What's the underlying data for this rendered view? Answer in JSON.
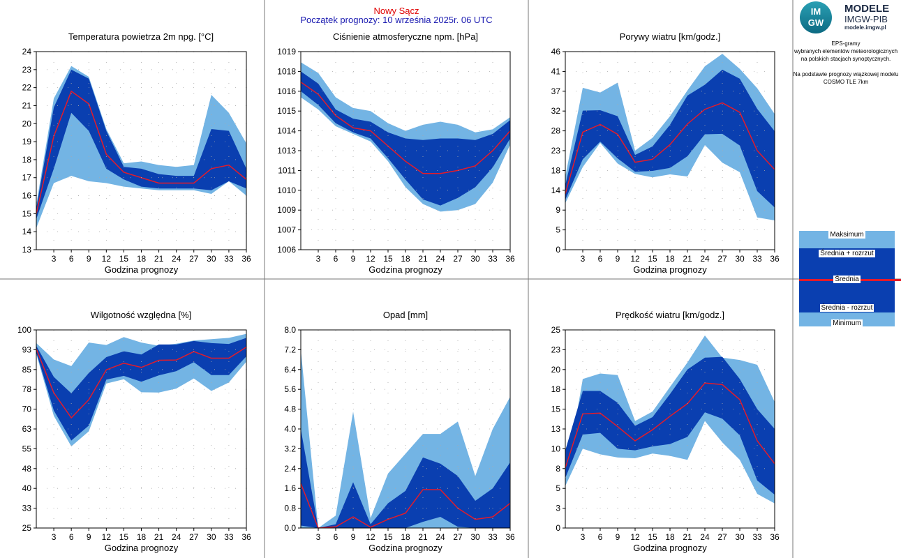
{
  "header": {
    "station": "Nowy Sącz",
    "forecast_start": "Początek prognozy: 10 września 2025r. 06 UTC"
  },
  "logo": {
    "mark_top": "IM",
    "mark_bottom": "GW",
    "title": "MODELE",
    "subtitle": "IMGW-PIB",
    "url": "modele.imgw.pl"
  },
  "info_text": [
    "EPS-gramy",
    "wybranych elementów meteorologicznych",
    "na polskich stacjach  synoptycznych.",
    "",
    "Na podstawie prognozy wiązkowej modelu",
    "COSMO TLE 7km"
  ],
  "legend": {
    "max": "Maksimum",
    "mean_plus": "Średnia + rozrzut",
    "mean": "Średnia",
    "mean_minus": "Średnia - rozrzut",
    "min": "Minimum"
  },
  "colors": {
    "range_band": "#73b4e4",
    "spread_band": "#0a3fb0",
    "mean_line": "#e41b2a",
    "station_title": "#e00000",
    "forecast_title": "#1a1ab0"
  },
  "chart_data": [
    {
      "type": "area",
      "title": "Temperatura powietrza 2m npg. [°C]",
      "xlabel": "Godzina prognozy",
      "x": [
        0,
        3,
        6,
        9,
        12,
        15,
        18,
        21,
        24,
        27,
        30,
        33,
        36
      ],
      "x_ticks": [
        "3",
        "6",
        "9",
        "12",
        "15",
        "18",
        "21",
        "24",
        "27",
        "30",
        "33",
        "36"
      ],
      "y_ticks": [
        "13",
        "14",
        "15",
        "16",
        "17",
        "18",
        "19",
        "20",
        "21",
        "22",
        "23",
        "24"
      ],
      "ylim": [
        13,
        24
      ],
      "series": [
        {
          "name": "Maksimum",
          "values": [
            15.5,
            21.4,
            23.2,
            22.6,
            19.7,
            17.8,
            17.9,
            17.7,
            17.6,
            17.7,
            21.6,
            20.6,
            18.9
          ]
        },
        {
          "name": "Średnia + rozrzut",
          "values": [
            15.3,
            20.9,
            23.0,
            22.5,
            19.6,
            17.6,
            17.5,
            17.2,
            17.1,
            17.1,
            19.7,
            19.6,
            17.5
          ]
        },
        {
          "name": "Średnia",
          "values": [
            15.0,
            19.3,
            21.8,
            21.1,
            18.3,
            17.3,
            17.0,
            16.7,
            16.7,
            16.7,
            17.5,
            17.7,
            16.9
          ]
        },
        {
          "name": "Średnia - rozrzut",
          "values": [
            14.7,
            17.5,
            20.6,
            19.6,
            17.5,
            16.9,
            16.5,
            16.4,
            16.4,
            16.4,
            16.3,
            16.8,
            16.4
          ]
        },
        {
          "name": "Minimum",
          "values": [
            14.2,
            16.7,
            17.1,
            16.8,
            16.7,
            16.5,
            16.4,
            16.3,
            16.3,
            16.3,
            16.1,
            16.8,
            16.0
          ]
        }
      ]
    },
    {
      "type": "area",
      "title": "Ciśnienie atmosferyczne npm. [hPa]",
      "xlabel": "Godzina prognozy",
      "x": [
        0,
        3,
        6,
        9,
        12,
        15,
        18,
        21,
        24,
        27,
        30,
        33,
        36
      ],
      "x_ticks": [
        "3",
        "6",
        "9",
        "12",
        "15",
        "18",
        "21",
        "24",
        "27",
        "30",
        "33",
        "36"
      ],
      "y_ticks": [
        "1006",
        "1007",
        "1009",
        "1010",
        "1011",
        "1013",
        "1014",
        "1015",
        "1016",
        "1018",
        "1019"
      ],
      "ylim": [
        1006,
        1019
      ],
      "series": [
        {
          "name": "Maksimum",
          "values": [
            1018.3,
            1017.6,
            1016.0,
            1015.3,
            1015.1,
            1014.3,
            1013.8,
            1014.2,
            1014.4,
            1014.2,
            1013.7,
            1013.9,
            1014.7
          ]
        },
        {
          "name": "Średnia + rozrzut",
          "values": [
            1017.7,
            1016.9,
            1015.2,
            1014.6,
            1014.4,
            1013.7,
            1013.3,
            1013.2,
            1013.3,
            1013.3,
            1013.2,
            1013.6,
            1014.5
          ]
        },
        {
          "name": "Średnia",
          "values": [
            1017.0,
            1016.2,
            1014.8,
            1014.0,
            1013.8,
            1012.8,
            1011.8,
            1011.0,
            1011.0,
            1011.2,
            1011.5,
            1012.5,
            1013.8
          ]
        },
        {
          "name": "Średnia - rozrzut",
          "values": [
            1016.4,
            1015.5,
            1014.3,
            1013.7,
            1013.3,
            1012.0,
            1010.6,
            1009.3,
            1008.9,
            1009.4,
            1010.1,
            1011.4,
            1013.3
          ]
        },
        {
          "name": "Minimum",
          "values": [
            1016.0,
            1015.2,
            1014.1,
            1013.6,
            1013.1,
            1011.8,
            1010.1,
            1009.0,
            1008.5,
            1008.6,
            1009.0,
            1010.4,
            1012.9
          ]
        }
      ]
    },
    {
      "type": "area",
      "title": "Porywy wiatru [km/godz.]",
      "xlabel": "Godzina prognozy",
      "x": [
        0,
        3,
        6,
        9,
        12,
        15,
        18,
        21,
        24,
        27,
        30,
        33,
        36
      ],
      "x_ticks": [
        "3",
        "6",
        "9",
        "12",
        "15",
        "18",
        "21",
        "24",
        "27",
        "30",
        "33",
        "36"
      ],
      "y_ticks": [
        "0",
        "5",
        "9",
        "14",
        "18",
        "23",
        "28",
        "32",
        "37",
        "41",
        "46"
      ],
      "ylim": [
        0,
        46
      ],
      "series": [
        {
          "name": "Maksimum",
          "values": [
            17,
            37.6,
            36.5,
            38.8,
            23.0,
            26.0,
            31.0,
            37.0,
            42.6,
            45.5,
            42.0,
            37.5,
            31.5
          ]
        },
        {
          "name": "Średnia + rozrzut",
          "values": [
            15,
            32.3,
            32.4,
            31.0,
            22.0,
            24.0,
            29.0,
            35.8,
            38.3,
            41.8,
            39.7,
            32.7,
            27.5
          ]
        },
        {
          "name": "Średnia",
          "values": [
            13,
            27.3,
            29.1,
            26.8,
            20.3,
            21.0,
            24.4,
            29.2,
            32.6,
            34.1,
            31.9,
            23.0,
            18.6
          ]
        },
        {
          "name": "Średnia - rozrzut",
          "values": [
            11.6,
            21.0,
            25.1,
            21.2,
            18.1,
            18.3,
            19.0,
            21.7,
            26.8,
            26.9,
            24.2,
            13.6,
            9.8
          ]
        },
        {
          "name": "Minimum",
          "values": [
            10.8,
            19.2,
            24.8,
            20.0,
            17.6,
            16.8,
            17.5,
            17.0,
            24.3,
            20.2,
            18.0,
            7.5,
            6.8
          ]
        }
      ]
    },
    {
      "type": "area",
      "title": "Wilgotność względna [%]",
      "xlabel": "Godzina prognozy",
      "x": [
        0,
        3,
        6,
        9,
        12,
        15,
        18,
        21,
        24,
        27,
        30,
        33,
        36
      ],
      "x_ticks": [
        "3",
        "6",
        "9",
        "12",
        "15",
        "18",
        "21",
        "24",
        "27",
        "30",
        "33",
        "36"
      ],
      "y_ticks": [
        "25",
        "33",
        "40",
        "48",
        "55",
        "63",
        "70",
        "78",
        "85",
        "93",
        "100"
      ],
      "ylim": [
        25,
        100
      ],
      "series": [
        {
          "name": "Maksimum",
          "values": [
            95,
            88.8,
            86.3,
            95.2,
            94.3,
            97.3,
            95.2,
            94.0,
            94.8,
            96.0,
            96.5,
            97.0,
            98.5
          ]
        },
        {
          "name": "Średnia + rozrzut",
          "values": [
            94.0,
            82.2,
            76.0,
            83.7,
            89.7,
            91.9,
            90.7,
            94.5,
            94.5,
            95.8,
            95.0,
            94.7,
            97.0
          ]
        },
        {
          "name": "Średnia",
          "values": [
            92.8,
            76.2,
            66.7,
            73.6,
            84.9,
            87.4,
            85.8,
            88.5,
            88.6,
            91.8,
            89.3,
            89.3,
            93.5
          ]
        },
        {
          "name": "Średnia - rozrzut",
          "values": [
            91.5,
            69.5,
            58.1,
            63.8,
            81.2,
            82.6,
            80.4,
            82.8,
            84.4,
            87.8,
            82.9,
            82.9,
            90.0
          ]
        },
        {
          "name": "Minimum",
          "values": [
            90.9,
            67.5,
            55.9,
            61.6,
            79.7,
            81.3,
            76.4,
            76.3,
            77.8,
            81.6,
            76.9,
            80.1,
            88.0
          ]
        }
      ]
    },
    {
      "type": "area",
      "title": "Opad [mm]",
      "xlabel": "Godzina prognozy",
      "x": [
        0,
        3,
        6,
        9,
        12,
        15,
        18,
        21,
        24,
        27,
        30,
        33,
        36
      ],
      "x_ticks": [
        "3",
        "6",
        "9",
        "12",
        "15",
        "18",
        "21",
        "24",
        "27",
        "30",
        "33",
        "36"
      ],
      "y_ticks": [
        "0.0",
        "0.8",
        "1.6",
        "2.4",
        "3.2",
        "4.0",
        "4.8",
        "5.6",
        "6.4",
        "7.2",
        "8.0"
      ],
      "ylim": [
        0,
        8
      ],
      "series": [
        {
          "name": "Maksimum",
          "values": [
            7.2,
            0.0,
            0.5,
            4.7,
            0.4,
            2.2,
            3.0,
            3.8,
            3.8,
            4.3,
            2.1,
            4.0,
            5.3
          ]
        },
        {
          "name": "Średnia + rozrzut",
          "values": [
            4.0,
            0.0,
            0.15,
            1.85,
            0.15,
            1.0,
            1.5,
            2.85,
            2.6,
            2.1,
            1.1,
            1.6,
            2.65
          ]
        },
        {
          "name": "Średnia",
          "values": [
            1.8,
            0.0,
            0.05,
            0.45,
            0.03,
            0.35,
            0.6,
            1.55,
            1.55,
            0.8,
            0.35,
            0.45,
            1.0
          ]
        },
        {
          "name": "Średnia - rozrzut",
          "values": [
            0.1,
            0.0,
            0.0,
            0.0,
            0.0,
            0.0,
            0.0,
            0.25,
            0.45,
            0.05,
            0.0,
            0.0,
            0.0
          ]
        },
        {
          "name": "Minimum",
          "values": [
            0.0,
            0.0,
            0.0,
            0.0,
            0.0,
            0.0,
            0.0,
            0.0,
            0.0,
            0.0,
            0.0,
            0.0,
            0.0
          ]
        }
      ]
    },
    {
      "type": "area",
      "title": "Prędkość wiatru [km/godz.]",
      "xlabel": "Godzina prognozy",
      "x": [
        0,
        3,
        6,
        9,
        12,
        15,
        18,
        21,
        24,
        27,
        30,
        33,
        36
      ],
      "x_ticks": [
        "3",
        "6",
        "9",
        "12",
        "15",
        "18",
        "21",
        "24",
        "27",
        "30",
        "33",
        "36"
      ],
      "y_ticks": [
        "0",
        "3",
        "5",
        "8",
        "10",
        "13",
        "15",
        "18",
        "20",
        "23",
        "25"
      ],
      "ylim": [
        0,
        25
      ],
      "series": [
        {
          "name": "Maksimum",
          "values": [
            6.0,
            18.8,
            19.5,
            19.3,
            13.5,
            14.7,
            17.8,
            20.9,
            24.3,
            21.5,
            21.2,
            20.6,
            15.9
          ]
        },
        {
          "name": "Średnia + rozrzut",
          "values": [
            9.8,
            17.3,
            17.3,
            15.8,
            12.9,
            14.0,
            16.9,
            20.0,
            21.5,
            21.6,
            18.8,
            15.0,
            12.5
          ]
        },
        {
          "name": "Średnia",
          "values": [
            7.6,
            14.4,
            14.5,
            12.8,
            11.0,
            12.4,
            14.1,
            15.7,
            18.3,
            18.1,
            16.2,
            11.0,
            8.1
          ]
        },
        {
          "name": "Średnia - rozrzut",
          "values": [
            6.3,
            11.8,
            12.0,
            10.0,
            9.8,
            10.3,
            10.6,
            11.5,
            14.6,
            13.8,
            11.7,
            6.0,
            4.2
          ]
        },
        {
          "name": "Minimum",
          "values": [
            5.3,
            10.0,
            9.3,
            8.9,
            8.8,
            9.4,
            9.1,
            8.6,
            13.5,
            10.8,
            8.6,
            4.3,
            3.1
          ]
        }
      ]
    }
  ]
}
